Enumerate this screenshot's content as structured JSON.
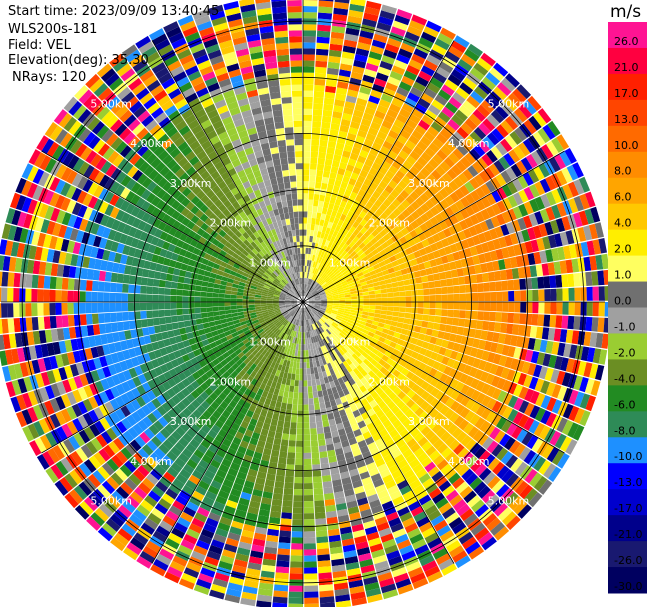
{
  "header": {
    "start_time": "Start time: 2023/09/09 13:40:45",
    "instrument": "WLS200s-181",
    "field": "Field: VEL",
    "elevation": "Elevation(deg): 35.30",
    "nrays": "NRays: 120"
  },
  "chart_data": {
    "type": "heatmap",
    "projection": "polar-ppi",
    "field": "VEL",
    "units": "m/s",
    "nrays": 120,
    "range_rings_km": [
      1.0,
      2.0,
      3.0,
      4.0,
      5.0
    ],
    "range_labels": [
      "1.00km",
      "2.00km",
      "3.00km",
      "4.00km",
      "5.00km"
    ],
    "max_range_km": 5.0,
    "azimuth_lines_deg": [
      0,
      30,
      60,
      90,
      120,
      150,
      180,
      210,
      240,
      270,
      300,
      330
    ],
    "colorbar": {
      "label": "m/s",
      "tick_labels": [
        "26.0",
        "21.0",
        "17.0",
        "13.0",
        "10.0",
        "8.0",
        "6.0",
        "4.0",
        "2.0",
        "1.0",
        "0.0",
        "-1.0",
        "-2.0",
        "-4.0",
        "-6.0",
        "-8.0",
        "-10.0",
        "-13.0",
        "-17.0",
        "-21.0",
        "-26.0",
        "-30.0"
      ],
      "colors": [
        "#ff1493",
        "#ff0040",
        "#ff2000",
        "#ff4500",
        "#ff6a00",
        "#ff8c00",
        "#ffa500",
        "#ffc800",
        "#ffee00",
        "#ffff60",
        "#707070",
        "#a0a0a0",
        "#9acd32",
        "#6b8e23",
        "#228b22",
        "#2e8b57",
        "#1e90ff",
        "#0000ff",
        "#0000cd",
        "#00008b",
        "#191970",
        "#000060"
      ]
    }
  }
}
